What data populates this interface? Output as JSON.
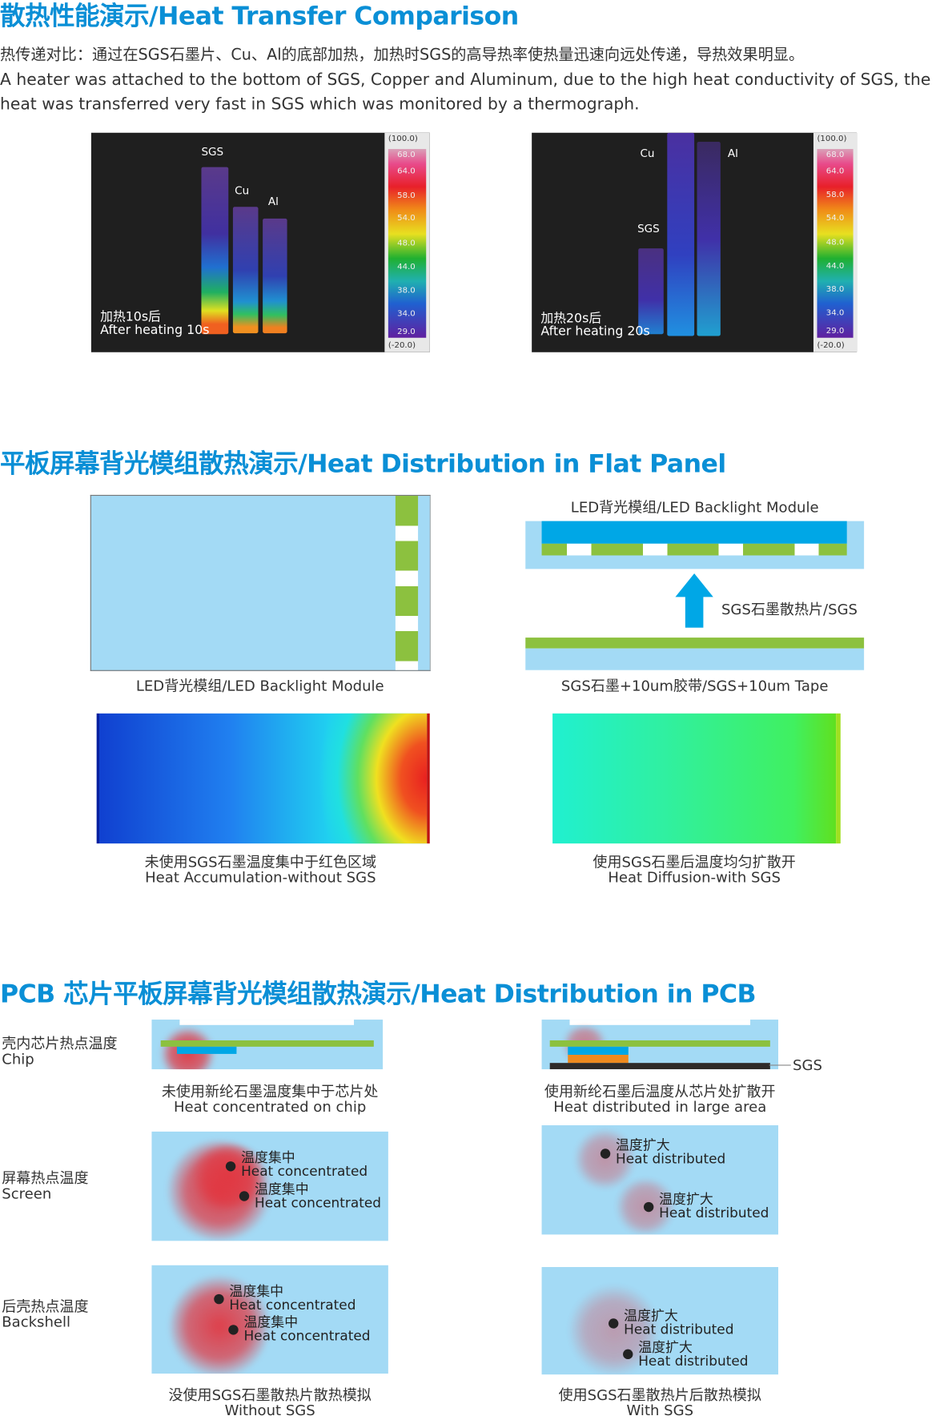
{
  "section1": {
    "title": "散热性能演示/Heat Transfer Comparison",
    "desc_cn": "热传递对比：通过在SGS石墨片、Cu、Al的底部加热，加热时SGS的高导热率使热量迅速向远处传递，导热效果明显。",
    "desc_en_1": "A heater was attached to the bottom of SGS,  Copper and Aluminum,  due to the high heat conductivity of SGS, the",
    "desc_en_2": "heat was transferred very fast in SGS which was monitored by a thermograph.",
    "thermo_left": {
      "labels": [
        "SGS",
        "Cu",
        "Al"
      ],
      "caption_cn": "加热10s后",
      "caption_en": "After heating 10s"
    },
    "thermo_right": {
      "labels": [
        "Cu",
        "Al",
        "SGS"
      ],
      "caption_cn": "加热20s后",
      "caption_en": "After heating 20s"
    },
    "scale": {
      "max": "(100.0)",
      "min": "(-20.0)",
      "ticks": [
        "68.0",
        "64.0",
        "58.0",
        "54.0",
        "48.0",
        "44.0",
        "38.0",
        "34.0",
        "29.0"
      ]
    }
  },
  "section2": {
    "title": "平板屏幕背光模组散热演示/Heat Distribution in Flat Panel",
    "left_caption": "LED背光模组/LED Backlight Module",
    "right_top_label": "LED背光模组/LED Backlight Module",
    "arrow_label": "SGS石墨散热片/SGS",
    "right_caption": "SGS石墨+10um胶带/SGS+10um Tape",
    "heat_left_cn": "未使用SGS石墨温度集中于红色区域",
    "heat_left_en": "Heat Accumulation-without SGS",
    "heat_right_cn": "使用SGS石墨后温度均匀扩散开",
    "heat_right_en": "Heat Diffusion-with SGS"
  },
  "section3": {
    "title": "PCB 芯片平板屏幕背光模组散热演示/Heat Distribution in PCB",
    "rows": [
      {
        "cn": "壳内芯片热点温度",
        "en": "Chip"
      },
      {
        "cn": "屏幕热点温度",
        "en": "Screen"
      },
      {
        "cn": "后壳热点温度",
        "en": "Backshell"
      }
    ],
    "sgs_label": "SGS",
    "chip_left_cn": "未使用新纶石墨温度集中于芯片处",
    "chip_left_en": "Heat concentrated on chip",
    "chip_right_cn": "使用新纶石墨后温度从芯片处扩散开",
    "chip_right_en": "Heat distributed in large area",
    "conc_cn": "温度集中",
    "conc_en": "Heat concentrated",
    "dist_cn": "温度扩大",
    "dist_en": "Heat distributed",
    "bottom_left_cn": "没使用SGS石墨散热片散热模拟",
    "bottom_left_en": "Without SGS",
    "bottom_right_cn": "使用SGS石墨散热片后散热模拟",
    "bottom_right_en": "With SGS"
  },
  "colors": {
    "heading": "#0a8fd6",
    "light_blue": "#a3daf5",
    "blue": "#00a7e6",
    "green": "#8cc13f",
    "orange": "#ee8a1e",
    "sgs_black": "#2e2a28",
    "hot_red": "#e13741"
  }
}
